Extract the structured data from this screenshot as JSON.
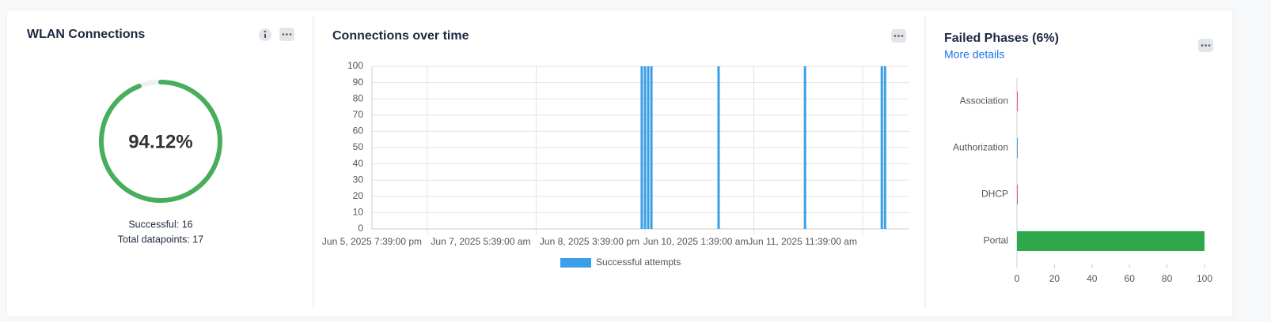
{
  "chart_data": [
    {
      "type": "gauge",
      "title": "WLAN Connections",
      "value": 94.12,
      "value_label": "94.12%",
      "color": "#48ae5b",
      "track_color": "#eef0f3",
      "notes": [
        "Successful: 16",
        "Total datapoints: 17"
      ]
    },
    {
      "type": "bar",
      "title": "Connections over time",
      "x": [
        "2025-06-08T14:39",
        "2025-06-08T15:39",
        "2025-06-08T16:39",
        "2025-06-08T17:39",
        "2025-06-09T14:39",
        "2025-06-10T17:39",
        "2025-06-11T17:39",
        "2025-06-11T18:39"
      ],
      "series": [
        {
          "name": "Successful attempts",
          "color": "#3b9ee6",
          "values": [
            100,
            100,
            100,
            100,
            100,
            100,
            100,
            100
          ]
        }
      ],
      "xlim": [
        "2025-06-05T02:20",
        "2025-06-12T02:15"
      ],
      "xticks": [
        {
          "value": "2025-06-05T19:39",
          "label": "Jun 5, 2025 7:39:00 pm"
        },
        {
          "value": "2025-06-07T05:39",
          "label": "Jun 7, 2025 5:39:00 am"
        },
        {
          "value": "2025-06-08T15:39",
          "label": "Jun 8, 2025 3:39:00 pm"
        },
        {
          "value": "2025-06-10T01:39",
          "label": "Jun 10, 2025 1:39:00 am"
        },
        {
          "value": "2025-06-11T11:39",
          "label": "Jun 11, 2025 11:39:00 am"
        }
      ],
      "ylim": [
        0,
        100
      ],
      "yticks": [
        0,
        10,
        20,
        30,
        40,
        50,
        60,
        70,
        80,
        90,
        100
      ],
      "grid": true,
      "legend": "bottom"
    },
    {
      "type": "hbar",
      "title": "Failed Phases (6%)",
      "link": "More details",
      "categories": [
        "Association",
        "Authorization",
        "DHCP",
        "Portal"
      ],
      "values": [
        0,
        0,
        0,
        100
      ],
      "colors": [
        "#e8546b",
        "#3b9ee6",
        "#e8546b",
        "#2ea84a"
      ],
      "xlim": [
        0,
        100
      ],
      "xticks": [
        0,
        20,
        40,
        60,
        80,
        100
      ]
    }
  ]
}
